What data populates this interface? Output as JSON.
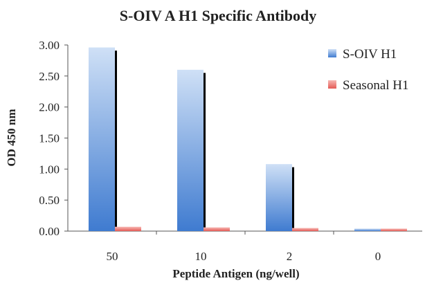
{
  "chart_data": {
    "type": "bar",
    "title": "S-OIV A H1 Specific Antibody",
    "xlabel": "Peptide Antigen (ng/well)",
    "ylabel": "OD 450 nm",
    "categories": [
      "50",
      "10",
      "2",
      "0"
    ],
    "ylim": [
      0,
      3
    ],
    "yticks": [
      "0.00",
      "0.50",
      "1.00",
      "1.50",
      "2.00",
      "2.50",
      "3.00"
    ],
    "series": [
      {
        "name": "S-OIV H1",
        "values": [
          2.96,
          2.6,
          1.08,
          0.04
        ],
        "error": [
          0.05,
          0.05,
          0.05,
          0
        ],
        "color": "#5b8fd6"
      },
      {
        "name": "Seasonal H1",
        "values": [
          0.07,
          0.06,
          0.05,
          0.04
        ],
        "error": [
          0,
          0,
          0,
          0
        ],
        "color": "#e06a66"
      }
    ],
    "grid": false,
    "legend_position": "right"
  }
}
